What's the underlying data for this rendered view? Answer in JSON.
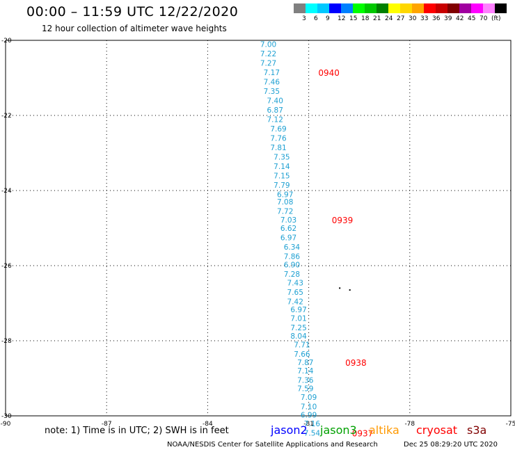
{
  "header": {
    "title": "00:00 – 11:59 UTC 12/22/2020",
    "subtitle": "12 hour collection of altimeter wave heights"
  },
  "colorbar": {
    "colors": [
      "#808080",
      "#00ffff",
      "#00c8ff",
      "#0000ff",
      "#0080ff",
      "#00ff00",
      "#00c800",
      "#008000",
      "#ffff00",
      "#ffd700",
      "#ffa500",
      "#ff0000",
      "#c80000",
      "#800000",
      "#a000a0",
      "#ff00ff",
      "#ff80ff",
      "#000000"
    ],
    "labels": [
      "3",
      "6",
      "9",
      "12",
      "15",
      "18",
      "21",
      "24",
      "27",
      "30",
      "33",
      "36",
      "39",
      "42",
      "45",
      "70",
      "(ft)"
    ]
  },
  "axes": {
    "x_ticks": [
      "-90",
      "-87",
      "-84",
      "-81",
      "-78",
      "-75"
    ],
    "y_ticks": [
      "-20",
      "-22",
      "-24",
      "-26",
      "-28",
      "-30"
    ],
    "lon_range": [
      -90,
      -75
    ],
    "lat_range": [
      -30,
      -20
    ]
  },
  "track": {
    "color": "#1ea0d2",
    "time_color": "#ff0000",
    "points": [
      {
        "lon": -82.2,
        "lat": -20.1,
        "swh": "7.00"
      },
      {
        "lon": -82.2,
        "lat": -20.35,
        "swh": "7.22"
      },
      {
        "lon": -82.2,
        "lat": -20.6,
        "swh": "7.27"
      },
      {
        "lon": -82.1,
        "lat": -20.85,
        "swh": "7.17"
      },
      {
        "lon": -82.1,
        "lat": -21.1,
        "swh": "7.46"
      },
      {
        "lon": -82.1,
        "lat": -21.35,
        "swh": "7.35"
      },
      {
        "lon": -82.0,
        "lat": -21.6,
        "swh": "7.40"
      },
      {
        "lon": -82.0,
        "lat": -21.85,
        "swh": "6.87"
      },
      {
        "lon": -82.0,
        "lat": -22.1,
        "swh": "7.12"
      },
      {
        "lon": -81.9,
        "lat": -22.35,
        "swh": "7.69"
      },
      {
        "lon": -81.9,
        "lat": -22.6,
        "swh": "7.76"
      },
      {
        "lon": -81.9,
        "lat": -22.85,
        "swh": "7.81"
      },
      {
        "lon": -81.8,
        "lat": -23.1,
        "swh": "7.35"
      },
      {
        "lon": -81.8,
        "lat": -23.35,
        "swh": "7.14"
      },
      {
        "lon": -81.8,
        "lat": -23.6,
        "swh": "7.15"
      },
      {
        "lon": -81.8,
        "lat": -23.85,
        "swh": "7.79"
      },
      {
        "lon": -81.7,
        "lat": -24.1,
        "swh": "6.97"
      },
      {
        "lon": -81.7,
        "lat": -24.3,
        "swh": "7.08"
      },
      {
        "lon": -81.7,
        "lat": -24.55,
        "swh": "7.72"
      },
      {
        "lon": -81.6,
        "lat": -24.78,
        "swh": "7.03"
      },
      {
        "lon": -81.6,
        "lat": -25.0,
        "swh": "6.62"
      },
      {
        "lon": -81.6,
        "lat": -25.25,
        "swh": "6.97"
      },
      {
        "lon": -81.5,
        "lat": -25.5,
        "swh": "6.34"
      },
      {
        "lon": -81.5,
        "lat": -25.75,
        "swh": "7.86"
      },
      {
        "lon": -81.5,
        "lat": -25.97,
        "swh": "6.90"
      },
      {
        "lon": -81.5,
        "lat": -26.22,
        "swh": "7.28"
      },
      {
        "lon": -81.4,
        "lat": -26.45,
        "swh": "7.43"
      },
      {
        "lon": -81.4,
        "lat": -26.7,
        "swh": "7.65"
      },
      {
        "lon": -81.4,
        "lat": -26.95,
        "swh": "7.42"
      },
      {
        "lon": -81.3,
        "lat": -27.17,
        "swh": "6.97"
      },
      {
        "lon": -81.3,
        "lat": -27.4,
        "swh": "7.01"
      },
      {
        "lon": -81.3,
        "lat": -27.65,
        "swh": "7.25"
      },
      {
        "lon": -81.3,
        "lat": -27.87,
        "swh": "8.04"
      },
      {
        "lon": -81.2,
        "lat": -28.1,
        "swh": "7.71"
      },
      {
        "lon": -81.2,
        "lat": -28.35,
        "swh": "7.66"
      },
      {
        "lon": -81.1,
        "lat": -28.57,
        "swh": "7.87"
      },
      {
        "lon": -81.1,
        "lat": -28.8,
        "swh": "7.14"
      },
      {
        "lon": -81.1,
        "lat": -29.05,
        "swh": "7.36"
      },
      {
        "lon": -81.1,
        "lat": -29.27,
        "swh": "7.59"
      },
      {
        "lon": -81.0,
        "lat": -29.5,
        "swh": "7.09"
      },
      {
        "lon": -81.0,
        "lat": -29.75,
        "swh": "7.10"
      },
      {
        "lon": -81.0,
        "lat": -29.97,
        "swh": "6.99"
      },
      {
        "lon": -80.9,
        "lat": -30.2,
        "swh": "7.16"
      },
      {
        "lon": -80.9,
        "lat": -30.45,
        "swh": "7.54"
      }
    ],
    "times": [
      {
        "lon": -80.4,
        "lat": -20.85,
        "label": "0940"
      },
      {
        "lon": -80.0,
        "lat": -24.78,
        "label": "0939"
      },
      {
        "lon": -79.6,
        "lat": -28.57,
        "label": "0938"
      },
      {
        "lon": -79.4,
        "lat": -30.45,
        "label": "0937"
      }
    ]
  },
  "land": [
    {
      "lon": -80.1,
      "lat": -26.58
    },
    {
      "lon": -79.8,
      "lat": -26.63
    }
  ],
  "legend": {
    "note": "note: 1) Time is in UTC; 2) SWH is in feet",
    "satellites": [
      {
        "name": "jason2",
        "color": "#0000ff"
      },
      {
        "name": "jason3",
        "color": "#00a000"
      },
      {
        "name": "altika",
        "color": "#ff9900"
      },
      {
        "name": "cryosat",
        "color": "#ff0000"
      },
      {
        "name": "s3a",
        "color": "#800000"
      }
    ]
  },
  "footer": {
    "credit": "NOAA/NESDIS Center for Satellite Applications and Research",
    "timestamp": "Dec 25 08:29:20 UTC 2020"
  }
}
